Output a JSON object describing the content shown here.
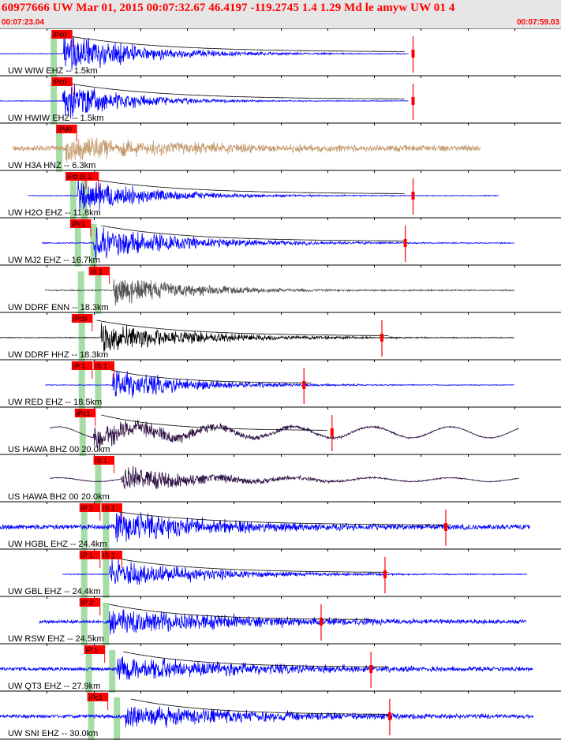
{
  "header": {
    "title": "60977666 UW Mar 01, 2015 00:07:32.67   46.4197 -119.2745  1.4 1.29 Md le amyw UW 01   4",
    "time_start": "00:07:23.04",
    "time_end": "00:07:59.03"
  },
  "colors": {
    "header_bg": "#e6e6e6",
    "title": "#ff0000",
    "pick_box": "#ff0000",
    "pick_text": "#000000",
    "window_band": "#a6dca6",
    "coda_curve": "#000000"
  },
  "chart_data": {
    "type": "seismogram",
    "time_range_seconds": [
      0,
      35.99
    ],
    "traces": [
      {
        "label": "UW WIW EHZ -- 1.5km",
        "color": "#0000ff",
        "start": 0,
        "end": 26.2,
        "onset": 4.1,
        "amp": 1.0,
        "decay": 5,
        "noise": 0.02,
        "wave": 0,
        "picks": [
          {
            "text": "iPc0",
            "t": 3.3
          }
        ],
        "bands": [
          3.45
        ],
        "coda": [
          4.5,
          26
        ],
        "marker": 26.5
      },
      {
        "label": "UW HWIW EHZ -- 1.5km",
        "color": "#0000ff",
        "start": 0,
        "end": 26.2,
        "onset": 4.0,
        "amp": 1.0,
        "decay": 4,
        "noise": 0.02,
        "wave": 0,
        "picks": [
          {
            "text": "iPc0",
            "t": 3.3
          }
        ],
        "bands": [
          3.45
        ],
        "coda": [
          4.5,
          26
        ],
        "marker": 26.5
      },
      {
        "label": "UW H3A HNZ -- 6.3km",
        "color": "#c49a6c",
        "start": 0.8,
        "end": 30.8,
        "onset": 4.2,
        "amp": 0.6,
        "decay": 9,
        "noise": 0.16,
        "wave": 0,
        "picks": [
          {
            "text": "iPd0",
            "t": 3.6
          }
        ],
        "bands": [
          3.8
        ],
        "coda": [],
        "marker": null
      },
      {
        "label": "UW H2O EHZ -- 11.8km",
        "color": "#0000ff",
        "start": 1.8,
        "end": 32,
        "onset": 5.0,
        "amp": 0.85,
        "decay": 5,
        "noise": 0.02,
        "wave": 0,
        "picks": [
          {
            "text": "iPd0",
            "t": 4.2
          },
          {
            "text": "iS 1",
            "t": 5.0
          }
        ],
        "bands": [
          4.7,
          5.4
        ],
        "coda": [
          5.5,
          26
        ],
        "marker": 26.5
      },
      {
        "label": "UW MJ2 EHZ -- 16.7km",
        "color": "#0000ff",
        "start": 2.7,
        "end": 33,
        "onset": 6.0,
        "amp": 0.8,
        "decay": 6,
        "noise": 0.03,
        "wave": 0,
        "picks": [
          {
            "text": "iPc1",
            "t": 4.5
          }
        ],
        "bands": [
          5.0,
          6.0
        ],
        "coda": [
          6.5,
          26
        ],
        "marker": 26.0
      },
      {
        "label": "UW DDRF ENN -- 18.3km",
        "color": "#505050",
        "start": 2.9,
        "end": 33,
        "onset": 7.3,
        "amp": 0.75,
        "decay": 5,
        "noise": 0.04,
        "wave": 0,
        "picks": [
          {
            "text": "iS 1",
            "t": 5.7
          }
        ],
        "bands": [
          5.2,
          6.3
        ],
        "coda": [],
        "marker": null
      },
      {
        "label": "UW DDRF HHZ -- 18.3km",
        "color": "#000000",
        "start": 0,
        "end": 33,
        "onset": 6.5,
        "amp": 0.75,
        "decay": 6,
        "noise": 0.02,
        "wave": 0,
        "picks": [
          {
            "text": "iPc0",
            "t": 4.6
          }
        ],
        "bands": [
          5.25
        ],
        "coda": [
          6.2,
          25
        ],
        "marker": 24.5
      },
      {
        "label": "UW RED EHZ -- 18.5km",
        "color": "#0000ff",
        "start": 2.9,
        "end": 33,
        "onset": 7.2,
        "amp": 0.75,
        "decay": 5,
        "noise": 0.02,
        "wave": 0,
        "picks": [
          {
            "text": "iP 1",
            "t": 4.6
          },
          {
            "text": "iS 1",
            "t": 6.0
          }
        ],
        "bands": [
          5.25,
          6.3
        ],
        "coda": [
          6.5,
          20
        ],
        "marker": 19.5
      },
      {
        "label": "US HAWA BHZ 00 20.0km",
        "color": "#2a0a40",
        "start": 3.2,
        "end": 33.3,
        "onset": 6.0,
        "amp": 0.6,
        "decay": 7,
        "noise": 0.02,
        "wave": 0.35,
        "picks": [
          {
            "text": "iPc1",
            "t": 4.8
          }
        ],
        "bands": [
          5.3
        ],
        "coda": [
          6.5,
          21
        ],
        "marker": 21.3
      },
      {
        "label": "US HAWA BH2 00 20.0km",
        "color": "#2a0a40",
        "start": 3.2,
        "end": 33.3,
        "onset": 7.8,
        "amp": 0.6,
        "decay": 6,
        "noise": 0.02,
        "wave": 0.12,
        "picks": [
          {
            "text": "iS 1",
            "t": 6.0
          }
        ],
        "bands": [
          6.3
        ],
        "coda": [],
        "marker": null
      },
      {
        "label": "UW HGBL EHZ -- 24.4km",
        "color": "#0000ff",
        "start": 0,
        "end": 34,
        "onset": 7.4,
        "amp": 0.8,
        "decay": 7,
        "noise": 0.14,
        "wave": 0,
        "picks": [
          {
            "text": "iP 2",
            "t": 5.1
          },
          {
            "text": "iS 1",
            "t": 6.5
          }
        ],
        "bands": [
          5.4,
          6.8
        ],
        "coda": [
          6.6,
          29
        ],
        "marker": 28.6
      },
      {
        "label": "UW GBL EHZ -- 24.4km",
        "color": "#0000ff",
        "start": 4.0,
        "end": 33.8,
        "onset": 7.0,
        "amp": 0.75,
        "decay": 6,
        "noise": 0.03,
        "wave": 0,
        "picks": [
          {
            "text": "iP 1",
            "t": 5.1
          },
          {
            "text": "iS 1",
            "t": 6.5
          }
        ],
        "bands": [
          5.4,
          6.8
        ],
        "coda": [
          7.0,
          25
        ],
        "marker": 24.7
      },
      {
        "label": "UW RSW EHZ -- 24.5km",
        "color": "#0000ff",
        "start": 2.5,
        "end": 33.8,
        "onset": 7.0,
        "amp": 0.65,
        "decay": 10,
        "noise": 0.1,
        "wave": 0,
        "picks": [
          {
            "text": "iP 2",
            "t": 5.1
          }
        ],
        "bands": [
          5.4,
          6.8
        ],
        "coda": [
          7.0,
          24
        ],
        "marker": 20.6
      },
      {
        "label": "UW QT3 EHZ -- 27.9km",
        "color": "#0000ff",
        "start": 0,
        "end": 34.2,
        "onset": 7.5,
        "amp": 0.6,
        "decay": 10,
        "noise": 0.1,
        "wave": 0,
        "picks": [
          {
            "text": "iP 1",
            "t": 5.4
          }
        ],
        "bands": [
          5.7,
          7.2
        ],
        "coda": [
          7.9,
          25
        ],
        "marker": 23.8
      },
      {
        "label": "UW SNI EHZ -- 30.0km",
        "color": "#0000ff",
        "start": 0,
        "end": 34.2,
        "onset": 8.0,
        "amp": 0.6,
        "decay": 10,
        "noise": 0.1,
        "wave": 0,
        "picks": [
          {
            "text": "iPc1",
            "t": 5.6
          }
        ],
        "bands": [
          5.85,
          7.5
        ],
        "coda": [
          8.4,
          25
        ],
        "marker": 25.0
      }
    ]
  }
}
